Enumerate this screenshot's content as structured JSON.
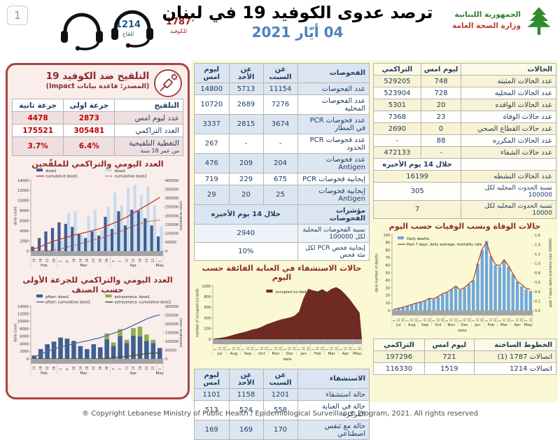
{
  "page": {
    "number": "1",
    "footer": "® Copyright Lebanese Ministry of Public Health / Epidemiological Surveillance Program, 2021. All rights reserved"
  },
  "header": {
    "title": "ترصد عدوى الكوفيد 19 في لبنان",
    "date": "04 أيّار 2021",
    "hotline_covid": {
      "number": "1787",
      "label": "للكوفيد"
    },
    "hotline_vaccine": {
      "number": "1214",
      "label": "للقاح"
    },
    "ministry": {
      "line1": "الجمهورية اللبنانية",
      "line2": "وزارة الصحة العامة"
    }
  },
  "vaccination": {
    "title": "التلقيح ضد الكوفيد 19",
    "source": "(المصدر: قاعدة بيانات Impact)",
    "col_label": "التلقيح",
    "col_dose1": "جرعة اولى",
    "col_dose2": "جرعة ثانية",
    "rows": [
      {
        "label": "عدد ليوم امس",
        "dose1": "2873",
        "dose2": "4478"
      },
      {
        "label": "العدد التراكمي",
        "dose1": "305481",
        "dose2": "175521"
      },
      {
        "label": "التغطية التلقيحية",
        "sublabel": "من عمر 18 سنة",
        "dose1": "6.4%",
        "dose2": "3.7%"
      }
    ]
  },
  "tests": {
    "col_label": "الفحوصات",
    "col_sat": "عن السبت",
    "col_sun": "عن الأحد",
    "col_yesterday": "ليوم امس",
    "rows": [
      {
        "label": "عدد الفحوصات",
        "sat": "11154",
        "sun": "5713",
        "yesterday": "14800"
      },
      {
        "label": "عدد الفحوصات المحلية",
        "sat": "7276",
        "sun": "2689",
        "yesterday": "10720"
      },
      {
        "label": "عدد فحوصات PCR في المطار",
        "sat": "3674",
        "sun": "2815",
        "yesterday": "3337"
      },
      {
        "label": "عدد فحوصات PCR الحدود",
        "sat": "-",
        "sun": "-",
        "yesterday": "267"
      },
      {
        "label": "عدد فحوصات Antigen",
        "sat": "204",
        "sun": "209",
        "yesterday": "476"
      },
      {
        "label": "إيجابية فحوصات PCR",
        "sat": "675",
        "sun": "229",
        "yesterday": "719"
      },
      {
        "label": "إيجابية فحوصات Antigen",
        "sat": "25",
        "sun": "20",
        "yesterday": "29"
      }
    ],
    "indicators_label": "مؤشرات الفحوصات",
    "indicators_period": "خلال 14 يوم الأخيره",
    "indicator_rows": [
      {
        "label": "نسبة الفحوصات المحلية لكل 100000",
        "value": "2940"
      },
      {
        "label": "إيجابية فحص PCR لكل مئة فحص",
        "value": "10%"
      }
    ]
  },
  "hospitalization": {
    "col_label": "الاستشفاء",
    "col_sat": "عن السبت",
    "col_sun": "عن الأحد",
    "col_yesterday": "ليوم امس",
    "rows": [
      {
        "label": "حالة استشفاء",
        "sat": "1201",
        "sun": "1158",
        "yesterday": "1101"
      },
      {
        "label": "حالة في العناية المركزه",
        "sat": "558",
        "sun": "524",
        "yesterday": "513"
      },
      {
        "label": "حالة مع تنفس اصطناعي",
        "sat": "170",
        "sun": "169",
        "yesterday": "169"
      }
    ]
  },
  "cases": {
    "col_label": "الحالات",
    "col_yesterday": "ليوم امس",
    "col_cumulative": "التراكمي",
    "rows": [
      {
        "label": "عدد الحالات المثبته",
        "yesterday": "748",
        "cumulative": "529205"
      },
      {
        "label": "عدد الحالات المحليه",
        "yesterday": "728",
        "cumulative": "523904"
      },
      {
        "label": "عدد الحالات الوافده",
        "yesterday": "20",
        "cumulative": "5301"
      },
      {
        "label": "عدد حالات الوفاة",
        "yesterday": "23",
        "cumulative": "7368"
      },
      {
        "label": "عدد حالات القطاع الصحي",
        "yesterday": "0",
        "cumulative": "2690"
      },
      {
        "label": "عدد الحالات المكرره",
        "yesterday": "88",
        "cumulative": "-"
      },
      {
        "label": "عدد حالات الشفاء",
        "yesterday": "-",
        "cumulative": "472133"
      }
    ],
    "period_note": "خلال 14 يوم الأخيره",
    "summary_rows": [
      {
        "label": "عدد الحالات النشطه",
        "value": "16199"
      },
      {
        "label": "نسبة الحدوث المحليه لكل 100000",
        "value": "305"
      },
      {
        "label": "نسبة الحدوث المحليه لكل 10000",
        "value": "7"
      }
    ]
  },
  "hotlines": {
    "col_label": "الخطوط الساخنة",
    "col_yesterday": "ليوم امس",
    "col_cumulative": "التراكمي",
    "rows": [
      {
        "label": "اتصالات 1787 (1)",
        "yesterday": "721",
        "cumulative": "197296"
      },
      {
        "label": "اتصالات 1214",
        "yesterday": "1519",
        "cumulative": "116330"
      }
    ]
  },
  "chart_data": [
    {
      "type": "bar",
      "title": "العدد اليومي والتراكمي للملقّحين",
      "legend_pos": "top",
      "x": [
        "14",
        "18",
        "22",
        "26",
        "2",
        "6",
        "10",
        "14",
        "18",
        "22",
        "26",
        "30",
        "3",
        "7",
        "11",
        "15",
        "19",
        "23",
        "27",
        "1"
      ],
      "months": [
        {
          "label": "Feb",
          "count": 4
        },
        {
          "label": "Mar",
          "count": 8
        },
        {
          "label": "Apr",
          "count": 7
        },
        {
          "label": "May",
          "count": 1
        }
      ],
      "left_axis": {
        "min": 0,
        "max": 14000,
        "step": 2000,
        "label": "daily count"
      },
      "right_axis": {
        "min": 0,
        "max": 400000,
        "step": 50000,
        "label": "cumulative count"
      },
      "series": [
        {
          "name": "dose1",
          "kind": "bar",
          "axis": "left",
          "color": "#3f5f91",
          "values": [
            900,
            2600,
            3900,
            4600,
            5700,
            5400,
            4800,
            3400,
            2600,
            3900,
            3100,
            6800,
            4400,
            7900,
            5100,
            8200,
            8000,
            6500,
            5100,
            2900
          ]
        },
        {
          "name": "dose2",
          "kind": "bar",
          "axis": "left",
          "color": "#c9dcee",
          "values": [
            0,
            0,
            0,
            1800,
            2100,
            7600,
            7900,
            3200,
            6900,
            8200,
            4100,
            8900,
            11600,
            9100,
            12600,
            13100,
            11100,
            12900,
            9100,
            5000
          ]
        },
        {
          "name": "cumulative dose1",
          "kind": "line",
          "axis": "right",
          "color": "#c0392b",
          "dash": false,
          "values": [
            12000,
            26000,
            42000,
            57000,
            68000,
            79000,
            90000,
            99000,
            108000,
            118000,
            128000,
            143000,
            158000,
            175000,
            193000,
            215000,
            237000,
            259000,
            281000,
            305000
          ]
        },
        {
          "name": "cumulative dose2",
          "kind": "line",
          "axis": "right",
          "color": "#c0392b",
          "dash": true,
          "values": [
            0,
            0,
            2000,
            6000,
            12000,
            22000,
            33000,
            42000,
            52000,
            63000,
            72000,
            84000,
            97000,
            110000,
            126000,
            142000,
            156000,
            166000,
            172000,
            176000
          ]
        }
      ]
    },
    {
      "type": "bar",
      "title": "العدد اليومي والتراكمي للجرعة الأولى حسب الصنف",
      "legend_pos": "top",
      "x": [
        "14",
        "18",
        "22",
        "26",
        "2",
        "6",
        "10",
        "14",
        "18",
        "22",
        "26",
        "30",
        "3",
        "7",
        "11",
        "15",
        "19",
        "23",
        "27",
        "1"
      ],
      "months": [
        {
          "label": "Feb",
          "count": 4
        },
        {
          "label": "Mar",
          "count": 8
        },
        {
          "label": "Apr",
          "count": 7
        },
        {
          "label": "May",
          "count": 1
        }
      ],
      "left_axis": {
        "min": 0,
        "max": 14000,
        "step": 2000,
        "label": "daily count"
      },
      "right_axis": {
        "min": 0,
        "max": 300000,
        "step": 50000,
        "label": "cumulative count"
      },
      "series": [
        {
          "name": "pfizer: dose1",
          "kind": "bar",
          "axis": "left",
          "color": "#3f5f91",
          "values": [
            900,
            2600,
            3900,
            4600,
            5700,
            5400,
            4800,
            3400,
            2600,
            3900,
            3100,
            5200,
            3500,
            6100,
            4200,
            6200,
            6000,
            4800,
            4200,
            2900
          ]
        },
        {
          "name": "astrazeneca: dose1",
          "kind": "bar",
          "axis": "left",
          "color": "#8fae4e",
          "stack": true,
          "values": [
            0,
            0,
            0,
            0,
            0,
            0,
            0,
            0,
            0,
            0,
            0,
            1600,
            900,
            1800,
            900,
            2000,
            2600,
            1700,
            900,
            0
          ]
        },
        {
          "name": "pfizer: cumulative dose1",
          "kind": "line",
          "axis": "right",
          "color": "#4f6d9e",
          "dash": false,
          "values": [
            12000,
            26000,
            42000,
            57000,
            67000,
            77000,
            87000,
            95000,
            103000,
            112000,
            121000,
            134000,
            146000,
            160000,
            174000,
            192000,
            210000,
            228000,
            242000,
            252000
          ]
        },
        {
          "name": "astrazeneca: cumulative dose1",
          "kind": "line",
          "axis": "right",
          "color": "#44512b",
          "dash": false,
          "values": [
            0,
            0,
            0,
            0,
            0,
            0,
            0,
            0,
            0,
            0,
            0,
            3000,
            6000,
            11000,
            14000,
            19000,
            25000,
            30000,
            33000,
            34000
          ]
        }
      ]
    },
    {
      "type": "area",
      "title": "حالات الاستشفاء في العناية الفائقة حسب اليوم",
      "legend_pos": "center",
      "xlabel": "date",
      "x": [
        "1",
        "11",
        "21",
        "1",
        "11",
        "21",
        "1",
        "11",
        "21",
        "1",
        "11",
        "21",
        "1",
        "11",
        "21",
        "1",
        "11",
        "21",
        "1",
        "11",
        "21",
        "1",
        "11",
        "21",
        "1",
        "11",
        "21",
        "1",
        "11",
        "21",
        "1",
        "11"
      ],
      "months": [
        {
          "label": "Jul",
          "count": 3
        },
        {
          "label": "Aug",
          "count": 3
        },
        {
          "label": "Sep",
          "count": 3
        },
        {
          "label": "Oct",
          "count": 3
        },
        {
          "label": "Nov",
          "count": 3
        },
        {
          "label": "Dec",
          "count": 3
        },
        {
          "label": "Jan",
          "count": 3
        },
        {
          "label": "Feb",
          "count": 3
        },
        {
          "label": "Mar",
          "count": 3
        },
        {
          "label": "Apr",
          "count": 3
        },
        {
          "label": "May",
          "count": 2
        }
      ],
      "left_axis": {
        "min": 0,
        "max": 1000,
        "step": 200,
        "label": "number of occupied icu beds"
      },
      "series": [
        {
          "name": "occupied icu bed",
          "kind": "area",
          "axis": "left",
          "color": "#6e2a23",
          "values": [
            15,
            25,
            40,
            60,
            85,
            110,
            130,
            155,
            185,
            200,
            235,
            280,
            310,
            340,
            370,
            390,
            410,
            440,
            520,
            780,
            950,
            920,
            900,
            940,
            890,
            950,
            980,
            930,
            840,
            740,
            620,
            500
          ]
        }
      ]
    },
    {
      "type": "bar",
      "title": "حالات الوفاة ونسب الوفيات حسب اليوم",
      "legend_pos": "left",
      "xlabel": "date",
      "x": [
        "1",
        "11",
        "21",
        "1",
        "11",
        "21",
        "1",
        "11",
        "21",
        "1",
        "11",
        "21",
        "1",
        "11",
        "21",
        "1",
        "11",
        "21",
        "1",
        "11",
        "21",
        "1",
        "11",
        "21",
        "1",
        "11",
        "21",
        "1",
        "11",
        "21",
        "1",
        "11"
      ],
      "months": [
        {
          "label": "Jul",
          "count": 3
        },
        {
          "label": "Aug",
          "count": 3
        },
        {
          "label": "Sep",
          "count": 3
        },
        {
          "label": "Oct",
          "count": 3
        },
        {
          "label": "Nov",
          "count": 3
        },
        {
          "label": "Dec",
          "count": 3
        },
        {
          "label": "Jan",
          "count": 3
        },
        {
          "label": "Feb",
          "count": 3
        },
        {
          "label": "Mar",
          "count": 3
        },
        {
          "label": "Apr",
          "count": 3
        },
        {
          "label": "May",
          "count": 2
        }
      ],
      "left_axis": {
        "min": 0,
        "max": 100,
        "step": 10,
        "label": "daily number of deaths"
      },
      "right_axis": {
        "min": 0,
        "max": 1.6,
        "step": 0.2,
        "label": "past 7 days, daily mortality rate /100000"
      },
      "series": [
        {
          "name": "Daily deaths",
          "kind": "bar",
          "axis": "left",
          "color": "#6fa8dc",
          "values": [
            2,
            3,
            4,
            6,
            8,
            10,
            11,
            13,
            16,
            15,
            18,
            22,
            24,
            28,
            32,
            27,
            30,
            35,
            40,
            62,
            80,
            92,
            72,
            60,
            58,
            66,
            58,
            48,
            38,
            32,
            28,
            26
          ]
        },
        {
          "name": "Past 7 days, daily average, mortality rate",
          "kind": "line",
          "axis": "right",
          "color": "#b5473f",
          "dash": false,
          "values": [
            0.03,
            0.05,
            0.07,
            0.1,
            0.13,
            0.16,
            0.18,
            0.21,
            0.26,
            0.25,
            0.3,
            0.36,
            0.39,
            0.45,
            0.52,
            0.44,
            0.49,
            0.57,
            0.65,
            1.0,
            1.3,
            1.45,
            1.15,
            0.98,
            0.95,
            1.08,
            0.95,
            0.78,
            0.62,
            0.55,
            0.47,
            0.45
          ]
        }
      ]
    }
  ]
}
